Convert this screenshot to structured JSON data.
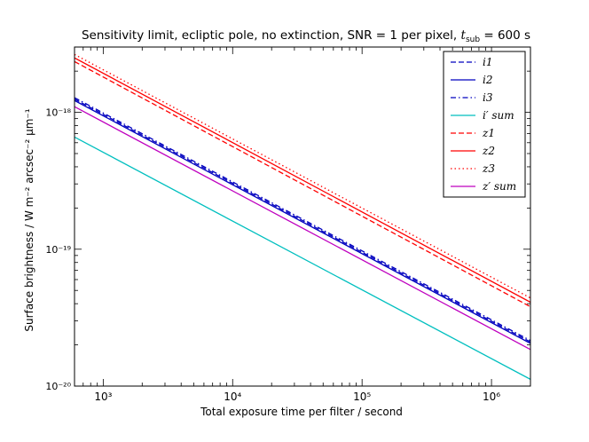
{
  "chart_data": {
    "type": "line",
    "title_prefix": "Sensitivity limit, ecliptic pole, no extinction, SNR = 1 per pixel, ",
    "title_math": "t",
    "title_sub": "sub",
    "title_suffix": " = 600 s",
    "xlabel": "Total exposure time per filter / second",
    "ylabel": "Surface brightness / W m⁻² arcsec⁻² μm⁻¹",
    "xscale": "log",
    "yscale": "log",
    "xlim": [
      600,
      2000000
    ],
    "ylim": [
      1e-20,
      3e-18
    ],
    "x_ticks": [
      {
        "value": 1000,
        "label": "10³"
      },
      {
        "value": 10000,
        "label": "10⁴"
      },
      {
        "value": 100000,
        "label": "10⁵"
      },
      {
        "value": 1000000,
        "label": "10⁶"
      }
    ],
    "y_ticks": [
      {
        "value": 1e-20,
        "label": "10⁻²⁰"
      },
      {
        "value": 1e-19,
        "label": "10⁻¹⁹"
      },
      {
        "value": 1e-18,
        "label": "10⁻¹⁸"
      }
    ],
    "legend_position": "top-right",
    "series": [
      {
        "name": "i1",
        "label": "i1",
        "color": "#0000bf",
        "dash": "dashed",
        "x": [
          600,
          2000000
        ],
        "y": [
          1.25e-18,
          2.1e-20
        ]
      },
      {
        "name": "i2",
        "label": "i2",
        "color": "#0000bf",
        "dash": "solid",
        "x": [
          600,
          2000000
        ],
        "y": [
          1.22e-18,
          2.05e-20
        ]
      },
      {
        "name": "i3",
        "label": "i3",
        "color": "#0000bf",
        "dash": "dashdot",
        "x": [
          600,
          2000000
        ],
        "y": [
          1.28e-18,
          2.15e-20
        ]
      },
      {
        "name": "i-sum",
        "label": "i′ sum",
        "color": "#00bfbf",
        "dash": "solid",
        "x": [
          600,
          2000000
        ],
        "y": [
          6.6e-19,
          1.12e-20
        ]
      },
      {
        "name": "z1",
        "label": "z1",
        "color": "#ff0000",
        "dash": "dashed",
        "x": [
          600,
          2000000
        ],
        "y": [
          2.35e-18,
          3.8e-20
        ]
      },
      {
        "name": "z2",
        "label": "z2",
        "color": "#ff0000",
        "dash": "solid",
        "x": [
          600,
          2000000
        ],
        "y": [
          2.5e-18,
          4.1e-20
        ]
      },
      {
        "name": "z3",
        "label": "z3",
        "color": "#ff0000",
        "dash": "dotted",
        "x": [
          600,
          2000000
        ],
        "y": [
          2.65e-18,
          4.4e-20
        ]
      },
      {
        "name": "z-sum",
        "label": "z′ sum",
        "color": "#bf00bf",
        "dash": "solid",
        "x": [
          600,
          2000000
        ],
        "y": [
          1.1e-18,
          1.85e-20
        ]
      }
    ]
  }
}
